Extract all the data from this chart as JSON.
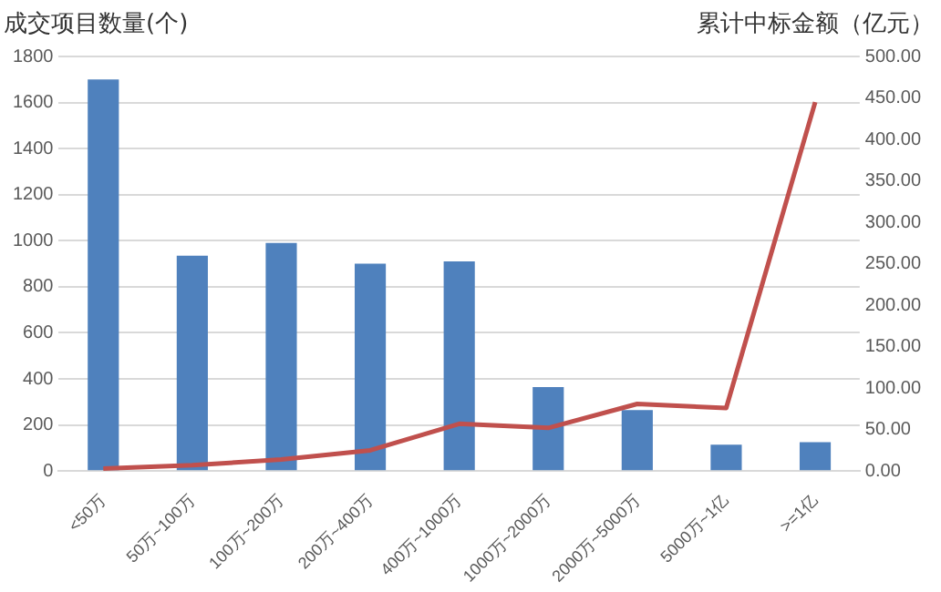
{
  "chart_data": {
    "type": "bar",
    "ylabel": "成交项目数量(个)",
    "y2label": "累计中标金额（亿元）",
    "categories": [
      "<50万",
      "50万~100万",
      "100万~200万",
      "200万~400万",
      "400万~1000万",
      "1000万~2000万",
      "2000万~5000万",
      "5000万~1亿",
      ">=1亿"
    ],
    "series": [
      {
        "color": "#4f81bd",
        "values": [
          1700,
          935,
          990,
          900,
          910,
          365,
          265,
          115,
          125
        ]
      },
      {
        "type": "line",
        "axis": "y2",
        "color": "#c0504d",
        "values": [
          3,
          7,
          14,
          25,
          57,
          52,
          81,
          76,
          445
        ]
      }
    ],
    "ylim": [
      0,
      1800
    ],
    "yticks": [
      0,
      200,
      400,
      600,
      800,
      1000,
      1200,
      1400,
      1600,
      1800
    ],
    "y2lim": [
      0,
      500
    ],
    "y2ticks": [
      {
        "value": 0,
        "label": "0.00"
      },
      {
        "value": 50,
        "label": "50.00"
      },
      {
        "value": 100,
        "label": "100.00"
      },
      {
        "value": 150,
        "label": "150.00"
      },
      {
        "value": 200,
        "label": "200.00"
      },
      {
        "value": 250,
        "label": "250.00"
      },
      {
        "value": 300,
        "label": "300.00"
      },
      {
        "value": 350,
        "label": "350.00"
      },
      {
        "value": 400,
        "label": "400.00"
      },
      {
        "value": 450,
        "label": "450.00"
      },
      {
        "value": 500,
        "label": "500.00"
      }
    ],
    "grid": "y",
    "legend": false,
    "marker": "none"
  }
}
